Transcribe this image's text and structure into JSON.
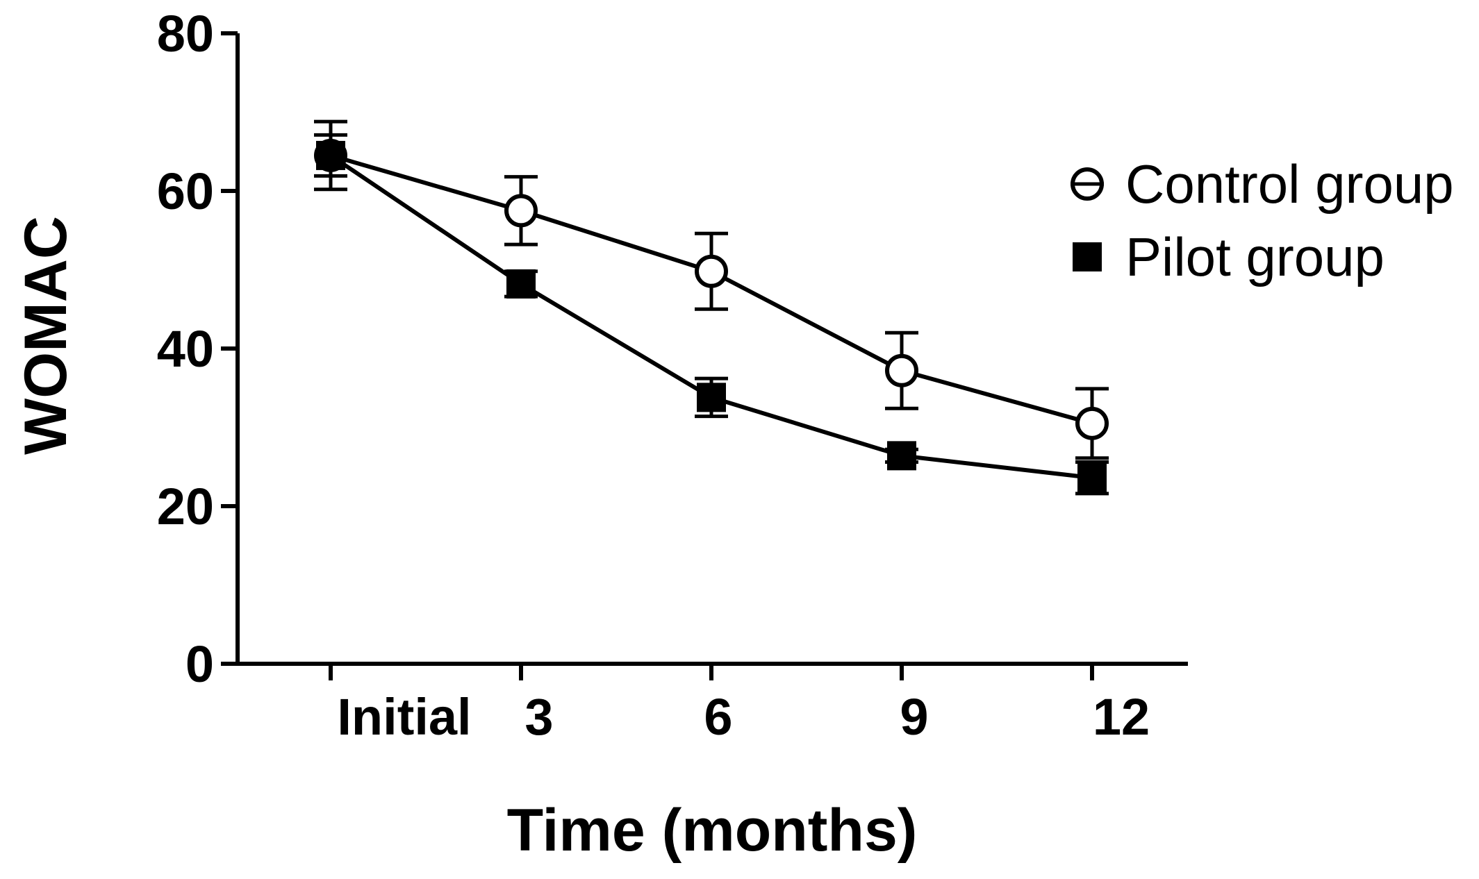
{
  "chart_data": {
    "type": "line",
    "title": "",
    "xlabel": "Time (months)",
    "ylabel": "WOMAC",
    "categories": [
      "Initial",
      "3",
      "6",
      "9",
      "12"
    ],
    "ylim": [
      0,
      80
    ],
    "yticks": [
      0,
      20,
      40,
      60,
      80
    ],
    "grid": false,
    "legend_position": "top-right",
    "series": [
      {
        "name": "Control group",
        "marker": "open-circle",
        "values": [
          64.5,
          57.5,
          49.8,
          37.2,
          30.5
        ],
        "errors": [
          4.3,
          4.3,
          4.8,
          4.8,
          4.4
        ]
      },
      {
        "name": "Pilot group",
        "marker": "filled-square",
        "values": [
          64.5,
          48.2,
          33.8,
          26.4,
          23.6
        ],
        "errors": [
          2.6,
          1.6,
          2.4,
          0.8,
          2.0
        ]
      }
    ],
    "colors": {
      "line": "#000000",
      "background": "#ffffff"
    }
  }
}
